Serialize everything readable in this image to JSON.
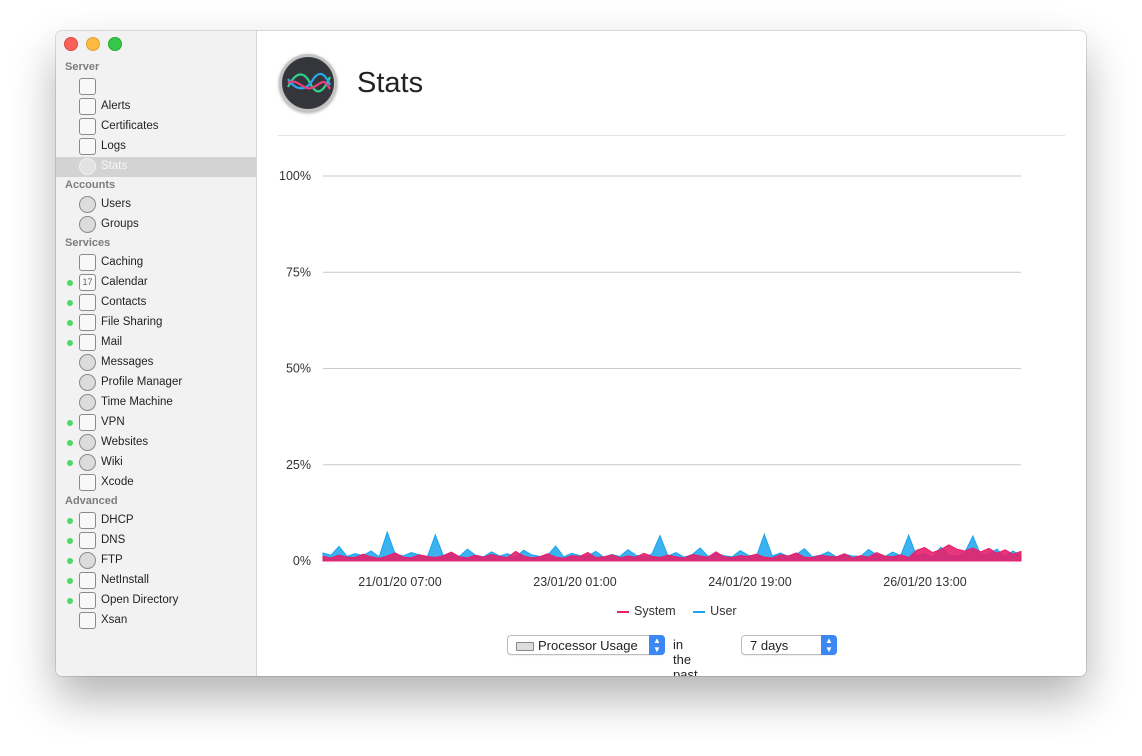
{
  "sidebar": {
    "sections": {
      "server": "Server",
      "accounts": "Accounts",
      "services": "Services",
      "advanced": "Advanced"
    },
    "server_items": [
      {
        "label": "",
        "icon": "server-icon"
      },
      {
        "label": "Alerts",
        "icon": "megaphone-icon"
      },
      {
        "label": "Certificates",
        "icon": "certificate-icon"
      },
      {
        "label": "Logs",
        "icon": "log-icon"
      },
      {
        "label": "Stats",
        "icon": "stats-icon",
        "selected": true
      }
    ],
    "account_items": [
      {
        "label": "Users",
        "icon": "user-icon"
      },
      {
        "label": "Groups",
        "icon": "group-icon"
      }
    ],
    "service_items": [
      {
        "label": "Caching",
        "icon": "caching-icon",
        "running": false
      },
      {
        "label": "Calendar",
        "icon": "calendar-icon",
        "icon_text": "17",
        "running": true
      },
      {
        "label": "Contacts",
        "icon": "contacts-icon",
        "running": true
      },
      {
        "label": "File Sharing",
        "icon": "folder-icon",
        "running": true
      },
      {
        "label": "Mail",
        "icon": "mail-icon",
        "running": true
      },
      {
        "label": "Messages",
        "icon": "messages-icon",
        "running": false
      },
      {
        "label": "Profile Manager",
        "icon": "gear-icon",
        "running": false
      },
      {
        "label": "Time Machine",
        "icon": "clock-icon",
        "running": false
      },
      {
        "label": "VPN",
        "icon": "lock-icon",
        "running": true
      },
      {
        "label": "Websites",
        "icon": "globe-icon",
        "running": true
      },
      {
        "label": "Wiki",
        "icon": "wiki-icon",
        "running": true
      },
      {
        "label": "Xcode",
        "icon": "hammer-icon",
        "running": false
      }
    ],
    "advanced_items": [
      {
        "label": "DHCP",
        "icon": "dhcp-icon",
        "running": true
      },
      {
        "label": "DNS",
        "icon": "dns-icon",
        "running": true
      },
      {
        "label": "FTP",
        "icon": "ftp-icon",
        "running": true
      },
      {
        "label": "NetInstall",
        "icon": "netinstall-icon",
        "running": true
      },
      {
        "label": "Open Directory",
        "icon": "directory-icon",
        "running": true
      },
      {
        "label": "Xsan",
        "icon": "xsan-icon",
        "running": false
      }
    ]
  },
  "main": {
    "title": "Stats",
    "metric_select": "Processor Usage",
    "in_the_past_label": "in the past",
    "range_select": "7 days"
  },
  "colors": {
    "system": "#e5206d",
    "user": "#1aa5ef",
    "running_dot": "#4cd964"
  },
  "chart_data": {
    "type": "area",
    "title": "",
    "xlabel": "",
    "ylabel": "",
    "ylim": [
      0,
      100
    ],
    "yticks": [
      "0%",
      "25%",
      "50%",
      "75%",
      "100%"
    ],
    "yticks_values": [
      0,
      25,
      50,
      75,
      100
    ],
    "xticks": [
      "21/01/20 07:00",
      "23/01/20 01:00",
      "24/01/20 19:00",
      "26/01/20 13:00"
    ],
    "x_start": "20/01/20 02:00",
    "x_end": "27/01/20 02:00",
    "series": [
      {
        "name": "System",
        "values": [
          1.2,
          0.8,
          1.5,
          1.0,
          0.9,
          1.8,
          1.1,
          0.7,
          1.3,
          2.1,
          1.0,
          0.8,
          1.6,
          1.2,
          0.9,
          1.4,
          2.3,
          1.1,
          0.8,
          1.5,
          1.0,
          1.7,
          1.2,
          0.9,
          2.5,
          1.3,
          0.8,
          1.1,
          1.9,
          1.0,
          0.7,
          1.4,
          1.2,
          2.2,
          0.9,
          1.1,
          1.6,
          0.8,
          1.3,
          1.0,
          2.0,
          1.2,
          0.9,
          1.5,
          1.1,
          0.8,
          1.7,
          1.3,
          1.0,
          2.4,
          1.1,
          0.9,
          1.4,
          1.2,
          1.8,
          1.0,
          0.8,
          1.6,
          1.3,
          2.1,
          1.0,
          0.9,
          1.5,
          1.2,
          1.1,
          1.9,
          0.8,
          1.4,
          1.0,
          2.2,
          1.3,
          1.1,
          1.6,
          0.9,
          2.8,
          3.5,
          2.2,
          3.0,
          4.2,
          3.1,
          2.6,
          3.4,
          2.4,
          3.3,
          2.0,
          2.9,
          1.8,
          2.5
        ]
      },
      {
        "name": "User",
        "values": [
          2.1,
          1.5,
          3.8,
          1.2,
          1.9,
          1.4,
          2.6,
          1.1,
          7.5,
          1.8,
          1.3,
          2.2,
          1.6,
          1.0,
          6.8,
          1.4,
          2.0,
          1.2,
          3.1,
          1.5,
          1.1,
          2.4,
          1.3,
          1.9,
          1.0,
          2.8,
          1.6,
          1.2,
          1.5,
          3.9,
          1.1,
          2.0,
          1.4,
          1.3,
          2.5,
          1.0,
          1.7,
          1.2,
          2.9,
          1.5,
          1.1,
          1.8,
          6.6,
          1.3,
          2.2,
          1.0,
          1.6,
          3.4,
          1.2,
          1.9,
          1.4,
          1.1,
          2.7,
          1.5,
          1.0,
          6.9,
          1.3,
          2.1,
          1.2,
          1.7,
          3.2,
          1.1,
          1.5,
          2.4,
          1.0,
          1.8,
          1.3,
          1.2,
          3.0,
          1.6,
          1.1,
          2.3,
          1.4,
          6.7,
          1.2,
          1.9,
          1.0,
          3.6,
          1.5,
          1.2,
          2.2,
          6.5,
          1.4,
          1.8,
          3.1,
          1.1,
          2.6,
          1.3
        ]
      }
    ],
    "legend": "bottom-center",
    "grid": true
  }
}
